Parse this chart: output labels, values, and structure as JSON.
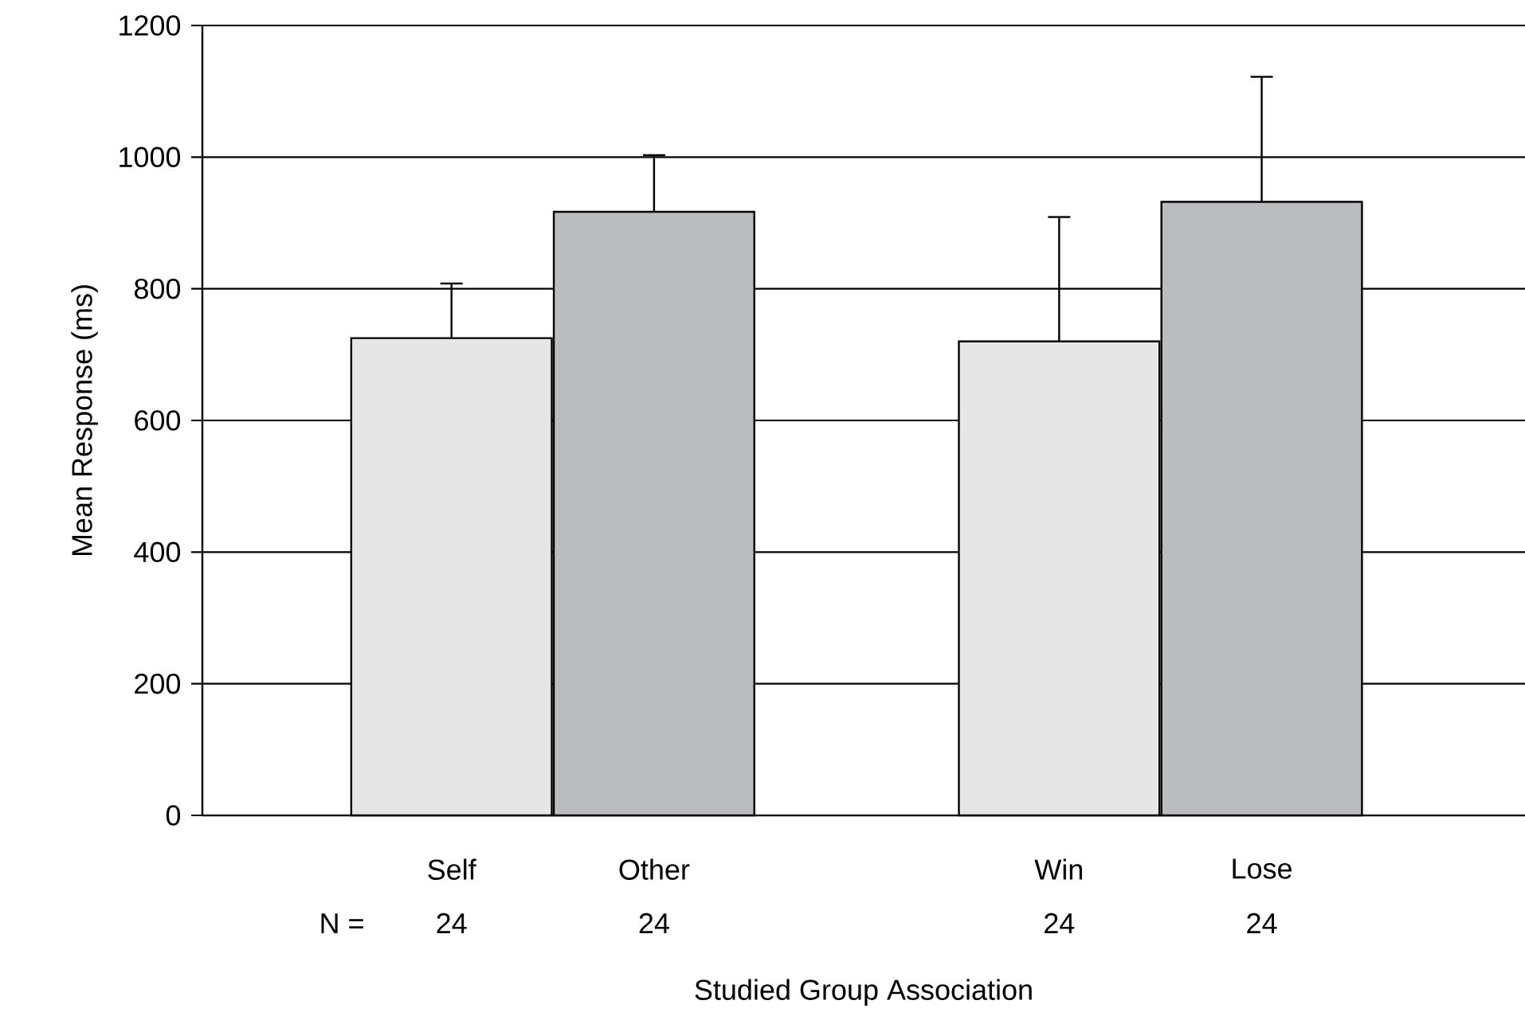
{
  "chart_data": {
    "type": "bar",
    "xlabel": "Studied Group Association",
    "ylabel": "Mean Response (ms)",
    "categories": [
      "Self",
      "Other",
      null,
      "Win",
      "Lose"
    ],
    "values": [
      725,
      917,
      null,
      720,
      932
    ],
    "errors": [
      83,
      86,
      null,
      189,
      190
    ],
    "colors": [
      "#e6e6e6",
      "#bbbcbf",
      null,
      "#e6e6e6",
      "#bbbcbf"
    ],
    "ylim": [
      0,
      1200
    ],
    "yticks": [
      0,
      200,
      400,
      600,
      800,
      1000,
      1200
    ],
    "grid": "y",
    "annotations": [
      "N =",
      "24",
      "24",
      "24",
      "24"
    ]
  }
}
